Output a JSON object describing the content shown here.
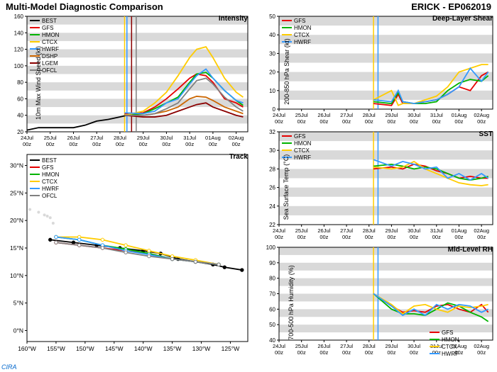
{
  "title_left": "Multi-Model Diagnostic Comparison",
  "title_right": "ERICK - EP062019",
  "logo_text": "CIRA",
  "x_axis": {
    "labels": [
      "24Jul 00z",
      "25Jul 00z",
      "26Jul 00z",
      "27Jul 00z",
      "28Jul 00z",
      "29Jul 00z",
      "30Jul 00z",
      "31Jul 00z",
      "01Aug 00z",
      "02Aug 00z"
    ],
    "fontsize": 8
  },
  "colors": {
    "BEST": "#000000",
    "GFS": "#e60000",
    "HMON": "#00b300",
    "CTCX": "#ffcc00",
    "HWRF": "#3399ff",
    "DSHP": "#cc6600",
    "LGEM": "#8b0000",
    "OFCL": "#808080",
    "band": "#d9d9d9",
    "axis": "#000000"
  },
  "intensity": {
    "title": "Intensity",
    "ylabel": "10m Max Wind Speed (kt)",
    "ylim": [
      20,
      160
    ],
    "yticks": [
      20,
      40,
      60,
      80,
      100,
      120,
      140,
      160
    ],
    "bands": [
      [
        30,
        40
      ],
      [
        50,
        60
      ],
      [
        70,
        80
      ],
      [
        90,
        100
      ],
      [
        110,
        120
      ],
      [
        130,
        140
      ],
      [
        150,
        160
      ]
    ],
    "legend": [
      "BEST",
      "GFS",
      "HMON",
      "CTCX",
      "HWRF",
      "DSHP",
      "LGEM",
      "OFCL"
    ],
    "x_window": [
      0,
      9.5
    ],
    "series": {
      "BEST": [
        [
          0,
          22
        ],
        [
          0.5,
          25
        ],
        [
          1,
          25
        ],
        [
          2,
          25
        ],
        [
          2.5,
          28
        ],
        [
          3,
          33
        ],
        [
          3.5,
          35
        ],
        [
          4,
          38
        ],
        [
          4.3,
          40
        ]
      ],
      "GFS": [
        [
          4.2,
          42
        ],
        [
          5,
          43
        ],
        [
          5.5,
          50
        ],
        [
          6,
          60
        ],
        [
          6.5,
          72
        ],
        [
          7,
          85
        ],
        [
          7.3,
          90
        ],
        [
          7.7,
          88
        ],
        [
          8,
          80
        ],
        [
          8.5,
          60
        ],
        [
          9,
          55
        ],
        [
          9.3,
          50
        ]
      ],
      "HMON": [
        [
          4.2,
          40
        ],
        [
          5,
          42
        ],
        [
          5.5,
          48
        ],
        [
          6,
          55
        ],
        [
          6.5,
          62
        ],
        [
          7,
          80
        ],
        [
          7.3,
          90
        ],
        [
          7.7,
          92
        ],
        [
          8,
          85
        ],
        [
          8.5,
          70
        ],
        [
          9,
          58
        ],
        [
          9.3,
          52
        ]
      ],
      "CTCX": [
        [
          4.2,
          40
        ],
        [
          5,
          45
        ],
        [
          5.5,
          55
        ],
        [
          6,
          68
        ],
        [
          6.5,
          88
        ],
        [
          7,
          110
        ],
        [
          7.3,
          120
        ],
        [
          7.7,
          123
        ],
        [
          8,
          110
        ],
        [
          8.5,
          85
        ],
        [
          9,
          68
        ],
        [
          9.3,
          62
        ]
      ],
      "HWRF": [
        [
          4.2,
          43
        ],
        [
          5,
          42
        ],
        [
          5.5,
          45
        ],
        [
          6,
          55
        ],
        [
          6.5,
          60
        ],
        [
          7,
          78
        ],
        [
          7.3,
          88
        ],
        [
          7.7,
          96
        ],
        [
          8,
          85
        ],
        [
          8.5,
          70
        ],
        [
          9,
          58
        ],
        [
          9.3,
          55
        ]
      ],
      "DSHP": [
        [
          4.2,
          40
        ],
        [
          5,
          40
        ],
        [
          5.5,
          42
        ],
        [
          6,
          45
        ],
        [
          6.5,
          50
        ],
        [
          7,
          60
        ],
        [
          7.3,
          63
        ],
        [
          7.7,
          62
        ],
        [
          8,
          58
        ],
        [
          8.5,
          50
        ],
        [
          9,
          45
        ],
        [
          9.3,
          42
        ]
      ],
      "LGEM": [
        [
          4.2,
          40
        ],
        [
          5,
          38
        ],
        [
          5.5,
          38
        ],
        [
          6,
          40
        ],
        [
          6.5,
          45
        ],
        [
          7,
          50
        ],
        [
          7.3,
          53
        ],
        [
          7.7,
          55
        ],
        [
          8,
          50
        ],
        [
          8.5,
          45
        ],
        [
          9,
          40
        ],
        [
          9.3,
          38
        ]
      ],
      "OFCL": [
        [
          4.2,
          40
        ],
        [
          5,
          40
        ],
        [
          5.5,
          42
        ],
        [
          6,
          48
        ],
        [
          6.5,
          55
        ],
        [
          7,
          72
        ],
        [
          7.3,
          82
        ],
        [
          7.7,
          85
        ],
        [
          8,
          78
        ],
        [
          8.5,
          62
        ],
        [
          9,
          50
        ],
        [
          9.3,
          45
        ]
      ]
    },
    "vlines": [
      [
        4.2,
        "#ffcc00"
      ],
      [
        4.3,
        "#3399ff"
      ],
      [
        4.5,
        "#8b0000"
      ],
      [
        4.7,
        "#808080"
      ]
    ]
  },
  "track": {
    "title": "Track",
    "ylabel": "",
    "xlim": [
      -160,
      -122
    ],
    "ylim": [
      -2,
      32
    ],
    "xticks": [
      -160,
      -155,
      -150,
      -145,
      -140,
      -135,
      -130,
      -125
    ],
    "yticks": [
      0,
      5,
      10,
      15,
      20,
      25,
      30
    ],
    "legend": [
      "BEST",
      "GFS",
      "HMON",
      "CTCX",
      "HWRF",
      "OFCL"
    ],
    "series": {
      "BEST": [
        [
          -123,
          11
        ],
        [
          -126,
          11.5
        ],
        [
          -128,
          12
        ],
        [
          -131,
          12.5
        ],
        [
          -134,
          13
        ],
        [
          -137,
          14
        ],
        [
          -140,
          14.5
        ],
        [
          -144,
          15
        ],
        [
          -148,
          15.5
        ],
        [
          -152,
          16
        ],
        [
          -156,
          16.5
        ]
      ],
      "GFS": [
        [
          -127,
          12
        ],
        [
          -131,
          12.5
        ],
        [
          -135,
          13
        ],
        [
          -139,
          14
        ],
        [
          -143,
          14.5
        ],
        [
          -147,
          15
        ],
        [
          -151,
          15.5
        ],
        [
          -155,
          16
        ]
      ],
      "HMON": [
        [
          -127,
          12
        ],
        [
          -131,
          12.5
        ],
        [
          -135,
          13
        ],
        [
          -139,
          14
        ],
        [
          -143,
          14.8
        ],
        [
          -147,
          15.5
        ],
        [
          -151,
          16.5
        ],
        [
          -155,
          17
        ]
      ],
      "CTCX": [
        [
          -127,
          12
        ],
        [
          -131,
          12.8
        ],
        [
          -135,
          13.5
        ],
        [
          -139,
          14.5
        ],
        [
          -143,
          15.5
        ],
        [
          -147,
          16.5
        ],
        [
          -151,
          17
        ],
        [
          -155,
          17
        ]
      ],
      "HWRF": [
        [
          -127,
          12
        ],
        [
          -131,
          12.5
        ],
        [
          -135,
          13
        ],
        [
          -139,
          13.8
        ],
        [
          -143,
          14.5
        ],
        [
          -147,
          15.5
        ],
        [
          -151,
          16.5
        ],
        [
          -155,
          17
        ]
      ],
      "OFCL": [
        [
          -127,
          12
        ],
        [
          -131,
          12.5
        ],
        [
          -135,
          13
        ],
        [
          -139,
          13.5
        ],
        [
          -143,
          14.2
        ],
        [
          -147,
          15
        ],
        [
          -151,
          15.5
        ],
        [
          -155,
          16
        ]
      ]
    },
    "hawaii": [
      [
        -155.5,
        19.5
      ],
      [
        -156,
        20.5
      ],
      [
        -156.5,
        20.8
      ],
      [
        -157,
        21
      ],
      [
        -158,
        21.5
      ],
      [
        -159.5,
        22
      ]
    ]
  },
  "shear": {
    "title": "Deep-Layer Shear",
    "ylabel": "200-850 hPa Shear (kt)",
    "ylim": [
      0,
      50
    ],
    "yticks": [
      0,
      10,
      20,
      30,
      40,
      50
    ],
    "bands": [
      [
        5,
        10
      ],
      [
        15,
        20
      ],
      [
        25,
        30
      ],
      [
        35,
        40
      ],
      [
        45,
        50
      ]
    ],
    "legend": [
      "GFS",
      "HMON",
      "CTCX",
      "HWRF"
    ],
    "series": {
      "GFS": [
        [
          4.2,
          3
        ],
        [
          5,
          2
        ],
        [
          5.3,
          8
        ],
        [
          5.5,
          3
        ],
        [
          6,
          3
        ],
        [
          6.5,
          4
        ],
        [
          7,
          5
        ],
        [
          7.5,
          8
        ],
        [
          8,
          12
        ],
        [
          8.5,
          10
        ],
        [
          9,
          18
        ],
        [
          9.3,
          20
        ]
      ],
      "HMON": [
        [
          4.2,
          4
        ],
        [
          5,
          3
        ],
        [
          5.3,
          9
        ],
        [
          5.5,
          4
        ],
        [
          6,
          3
        ],
        [
          6.5,
          3
        ],
        [
          7,
          4
        ],
        [
          7.5,
          10
        ],
        [
          8,
          14
        ],
        [
          8.5,
          16
        ],
        [
          9,
          15
        ],
        [
          9.3,
          18
        ]
      ],
      "CTCX": [
        [
          4.2,
          5
        ],
        [
          5,
          10
        ],
        [
          5.3,
          2
        ],
        [
          5.5,
          3
        ],
        [
          6,
          3
        ],
        [
          6.5,
          5
        ],
        [
          7,
          7
        ],
        [
          7.5,
          12
        ],
        [
          8,
          20
        ],
        [
          8.5,
          22
        ],
        [
          9,
          24
        ],
        [
          9.3,
          24
        ]
      ],
      "HWRF": [
        [
          4.2,
          5
        ],
        [
          5,
          4
        ],
        [
          5.3,
          10
        ],
        [
          5.5,
          4
        ],
        [
          6,
          3
        ],
        [
          6.5,
          4
        ],
        [
          7,
          5
        ],
        [
          7.5,
          8
        ],
        [
          8,
          12
        ],
        [
          8.5,
          22
        ],
        [
          9,
          15
        ],
        [
          9.3,
          20
        ]
      ]
    },
    "vlines": [
      [
        4.2,
        "#ffcc00"
      ],
      [
        4.4,
        "#3399ff"
      ]
    ]
  },
  "sst": {
    "title": "SST",
    "ylabel": "Sea Surface Temp (°C)",
    "ylim": [
      22,
      32
    ],
    "yticks": [
      22,
      24,
      26,
      28,
      30,
      32
    ],
    "bands": [
      [
        23,
        24
      ],
      [
        25,
        26
      ],
      [
        27,
        28
      ],
      [
        29,
        30
      ],
      [
        31,
        32
      ]
    ],
    "legend": [
      "GFS",
      "HMON",
      "CTCX",
      "HWRF"
    ],
    "series": {
      "GFS": [
        [
          4.2,
          28
        ],
        [
          5,
          28.2
        ],
        [
          5.5,
          28
        ],
        [
          6,
          28.5
        ],
        [
          6.5,
          28.3
        ],
        [
          7,
          27.8
        ],
        [
          7.5,
          27.5
        ],
        [
          8,
          27
        ],
        [
          8.5,
          27.2
        ],
        [
          9,
          27
        ],
        [
          9.3,
          27
        ]
      ],
      "HMON": [
        [
          4.2,
          28.3
        ],
        [
          5,
          28.5
        ],
        [
          5.5,
          28.3
        ],
        [
          6,
          28
        ],
        [
          6.5,
          28.2
        ],
        [
          7,
          28
        ],
        [
          7.5,
          27.5
        ],
        [
          8,
          27
        ],
        [
          8.5,
          26.8
        ],
        [
          9,
          27
        ],
        [
          9.3,
          27.2
        ]
      ],
      "CTCX": [
        [
          4.2,
          28.2
        ],
        [
          5,
          28
        ],
        [
          5.5,
          28.2
        ],
        [
          6,
          28.8
        ],
        [
          6.5,
          28
        ],
        [
          7,
          27.5
        ],
        [
          7.5,
          27
        ],
        [
          8,
          26.5
        ],
        [
          8.5,
          26.3
        ],
        [
          9,
          26.2
        ],
        [
          9.3,
          26.3
        ]
      ],
      "HWRF": [
        [
          4.2,
          29
        ],
        [
          5,
          28.3
        ],
        [
          5.5,
          28.8
        ],
        [
          6,
          28.5
        ],
        [
          6.5,
          28
        ],
        [
          7,
          28.2
        ],
        [
          7.5,
          27
        ],
        [
          8,
          27.5
        ],
        [
          8.5,
          26.8
        ],
        [
          9,
          27.5
        ],
        [
          9.3,
          27
        ]
      ]
    },
    "vlines": [
      [
        4.2,
        "#ffcc00"
      ],
      [
        4.4,
        "#3399ff"
      ]
    ]
  },
  "rh": {
    "title": "Mid-Level RH",
    "ylabel": "700-500 hPa Humidity (%)",
    "ylim": [
      40,
      100
    ],
    "yticks": [
      40,
      50,
      60,
      70,
      80,
      90,
      100
    ],
    "bands": [
      [
        45,
        50
      ],
      [
        55,
        60
      ],
      [
        65,
        70
      ],
      [
        75,
        80
      ],
      [
        85,
        90
      ],
      [
        95,
        100
      ]
    ],
    "legend": [
      "GFS",
      "HMON",
      "CTCX",
      "HWRF"
    ],
    "series": {
      "GFS": [
        [
          4.2,
          70
        ],
        [
          5,
          62
        ],
        [
          5.5,
          58
        ],
        [
          6,
          59
        ],
        [
          6.5,
          58
        ],
        [
          7,
          62
        ],
        [
          7.5,
          63
        ],
        [
          8,
          60
        ],
        [
          8.5,
          58
        ],
        [
          9,
          63
        ],
        [
          9.3,
          58
        ]
      ],
      "HMON": [
        [
          4.2,
          70
        ],
        [
          5,
          60
        ],
        [
          5.5,
          57
        ],
        [
          6,
          57
        ],
        [
          6.5,
          56
        ],
        [
          7,
          60
        ],
        [
          7.5,
          64
        ],
        [
          8,
          62
        ],
        [
          8.5,
          58
        ],
        [
          9,
          55
        ],
        [
          9.3,
          52
        ]
      ],
      "CTCX": [
        [
          4.2,
          70
        ],
        [
          5,
          63
        ],
        [
          5.5,
          57
        ],
        [
          6,
          62
        ],
        [
          6.5,
          63
        ],
        [
          7,
          60
        ],
        [
          7.5,
          58
        ],
        [
          8,
          62
        ],
        [
          8.5,
          61
        ],
        [
          9,
          62
        ],
        [
          9.3,
          63
        ]
      ],
      "HWRF": [
        [
          4.2,
          70
        ],
        [
          5,
          62
        ],
        [
          5.5,
          56
        ],
        [
          6,
          60
        ],
        [
          6.5,
          56
        ],
        [
          7,
          63
        ],
        [
          7.5,
          60
        ],
        [
          8,
          63
        ],
        [
          8.5,
          62
        ],
        [
          9,
          58
        ],
        [
          9.3,
          60
        ]
      ]
    },
    "vlines": [
      [
        4.2,
        "#ffcc00"
      ],
      [
        4.4,
        "#3399ff"
      ]
    ]
  }
}
